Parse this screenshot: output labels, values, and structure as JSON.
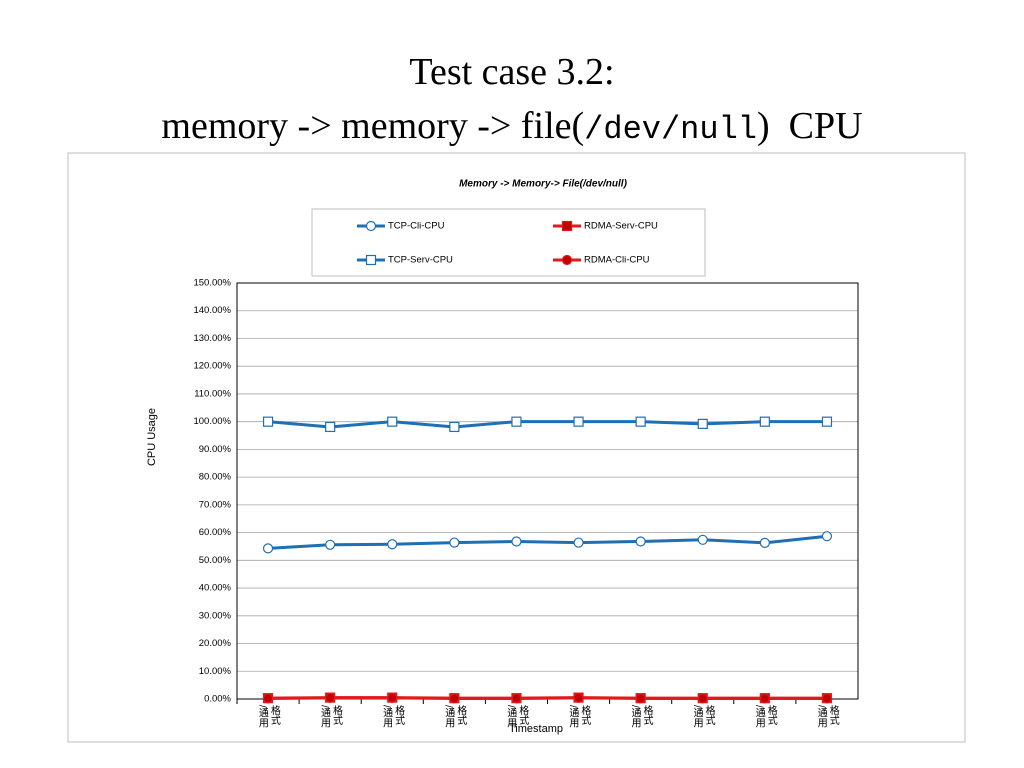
{
  "slide": {
    "title_line1": "Test case 3.2:",
    "title_line2_start": "memory -> memory -> file(",
    "title_line2_code": "/dev/null",
    "title_line2_end": ")  CPU"
  },
  "chart_data": {
    "type": "line",
    "title": "Memory -> Memory-> File(/dev/null)",
    "y_label": "CPU Usage",
    "x_label": "Timestamp",
    "categories": [
      "/通用格式",
      "/通用格式",
      "/通用格式",
      "/通用格式",
      "/通用格式",
      "/通用格式",
      "/通用格式",
      "/通用格式",
      "/通用格式",
      "/通用格式"
    ],
    "series": [
      {
        "name": "TCP-Cli-CPU",
        "color": "#1f6fb4",
        "marker": "circle",
        "marker_fill": "none",
        "values": [
          54.3,
          55.6,
          55.8,
          56.4,
          56.8,
          56.4,
          56.8,
          57.4,
          56.3,
          58.7
        ]
      },
      {
        "name": "RDMA-Serv-CPU",
        "color": "#e31a1c",
        "marker": "square",
        "marker_fill": "#c00000",
        "values": [
          0.3,
          0.5,
          0.5,
          0.3,
          0.3,
          0.5,
          0.3,
          0.3,
          0.3,
          0.3
        ]
      },
      {
        "name": "TCP-Serv-CPU",
        "color": "#1f6fb4",
        "marker": "square",
        "marker_fill": "none",
        "values": [
          100,
          98.1,
          100,
          98.1,
          100,
          100,
          100,
          99.2,
          100,
          100
        ]
      },
      {
        "name": "RDMA-Cli-CPU",
        "color": "#e31a1c",
        "marker": "circle",
        "marker_fill": "#c00000",
        "values": [
          0.2,
          0.4,
          0.4,
          0.2,
          0.2,
          0.4,
          0.2,
          0.2,
          0.2,
          0.2
        ]
      }
    ],
    "ylim": [
      0,
      150
    ],
    "yticks": [
      {
        "value": 0,
        "label": "0.00%"
      },
      {
        "value": 10,
        "label": "10.00%"
      },
      {
        "value": 20,
        "label": "20.00%"
      },
      {
        "value": 30,
        "label": "30.00%"
      },
      {
        "value": 40,
        "label": "40.00%"
      },
      {
        "value": 50,
        "label": "50.00%"
      },
      {
        "value": 60,
        "label": "60.00%"
      },
      {
        "value": 70,
        "label": "70.00%"
      },
      {
        "value": 80,
        "label": "80.00%"
      },
      {
        "value": 90,
        "label": "90.00%"
      },
      {
        "value": 100,
        "label": "100.00%"
      },
      {
        "value": 110,
        "label": "110.00%"
      },
      {
        "value": 120,
        "label": "120.00%"
      },
      {
        "value": 130,
        "label": "130.00%"
      },
      {
        "value": 140,
        "label": "140.00%"
      },
      {
        "value": 150,
        "label": "150.00%"
      }
    ],
    "grid": true
  }
}
